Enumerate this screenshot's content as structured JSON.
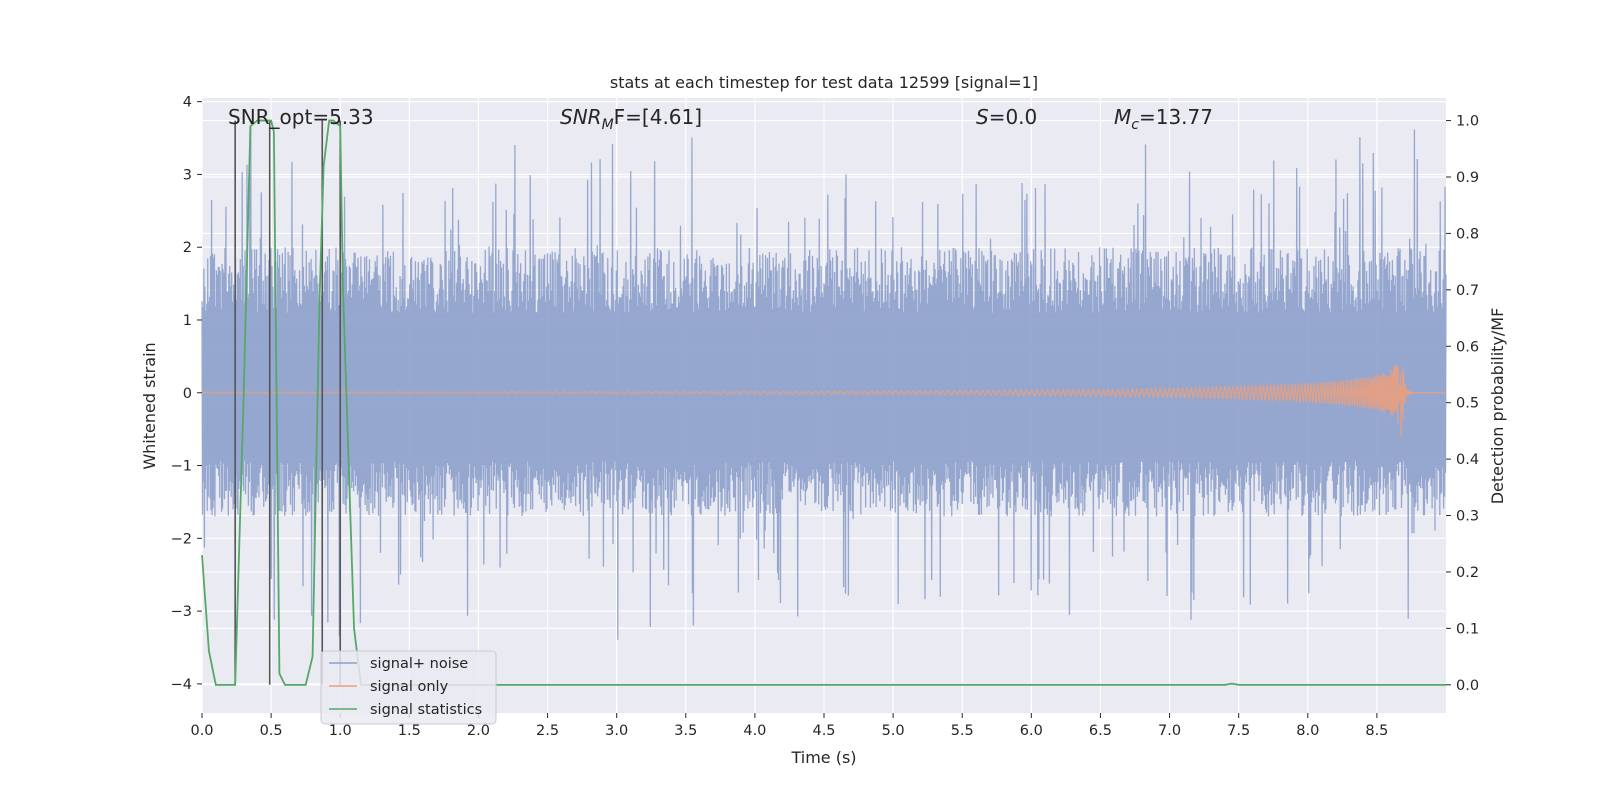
{
  "chart_data": {
    "type": "line",
    "title": "stats at each timestep for test data 12599 [signal=1]",
    "xlabel": "Time (s)",
    "ylabel_left": "Whitened strain",
    "ylabel_right": "Detection probability/MF",
    "xlim": [
      0.0,
      9.0
    ],
    "ylim_left": [
      -4.4,
      4.05
    ],
    "ylim_right": [
      -0.05,
      1.04
    ],
    "xticks": [
      "0.0",
      "0.5",
      "1.0",
      "1.5",
      "2.0",
      "2.5",
      "3.0",
      "3.5",
      "4.0",
      "4.5",
      "5.0",
      "5.5",
      "6.0",
      "6.5",
      "7.0",
      "7.5",
      "8.0",
      "8.5"
    ],
    "yticks_left": [
      "4",
      "3",
      "2",
      "1",
      "0",
      "−1",
      "−2",
      "−3",
      "−4"
    ],
    "yticks_left_values": [
      4,
      3,
      2,
      1,
      0,
      -1,
      -2,
      -3,
      -4
    ],
    "yticks_right": [
      "1.0",
      "0.9",
      "0.8",
      "0.7",
      "0.6",
      "0.5",
      "0.4",
      "0.3",
      "0.2",
      "0.1",
      "0.0"
    ],
    "yticks_right_values": [
      1.0,
      0.9,
      0.8,
      0.7,
      0.6,
      0.5,
      0.4,
      0.3,
      0.2,
      0.1,
      0.0
    ],
    "grid": true,
    "legend_placement": "lower-left",
    "annotations": {
      "snr_opt": "SNR_opt=5.33",
      "snr_mf_main": "SNR",
      "snr_mf_sub": "M",
      "snr_mf_tail": "F=[4.61]",
      "s_main": "S",
      "s_tail": "=0.0",
      "mc_main": "M",
      "mc_sub": "c",
      "mc_tail": "=13.77"
    },
    "series": [
      {
        "name": "signal+ noise",
        "color": "#8da0cb",
        "axis": "left",
        "description_values": {
          "typical_envelope": [
            -1.7,
            2.0
          ],
          "peak_max": 3.7,
          "peak_min": -3.4
        }
      },
      {
        "name": "signal only",
        "color": "#e8a07f",
        "axis": "left",
        "chirp": {
          "merger_time": 8.68,
          "peak_amplitude": 0.8
        }
      },
      {
        "name": "signal statistics",
        "color": "#55a868",
        "axis": "right",
        "x": [
          0.0,
          0.05,
          0.1,
          0.24,
          0.3,
          0.35,
          0.4,
          0.5,
          0.52,
          0.56,
          0.6,
          0.75,
          0.8,
          0.85,
          0.88,
          0.92,
          0.95,
          1.0,
          1.02,
          1.1,
          1.15,
          1.2,
          7.4,
          7.45,
          7.5,
          9.0
        ],
        "values": [
          0.23,
          0.06,
          0.0,
          0.0,
          0.5,
          0.99,
          1.0,
          1.0,
          0.98,
          0.02,
          0.0,
          0.0,
          0.05,
          0.68,
          0.92,
          1.0,
          1.0,
          0.99,
          0.7,
          0.1,
          0.0,
          0.0,
          0.0,
          0.002,
          0.0,
          0.0
        ]
      },
      {
        "name": "",
        "color": "#555555",
        "axis": "right",
        "type": "vertical-markers",
        "x": [
          0.24,
          0.49,
          0.87,
          1.0
        ],
        "y_range": [
          0.0,
          1.0
        ]
      }
    ]
  }
}
